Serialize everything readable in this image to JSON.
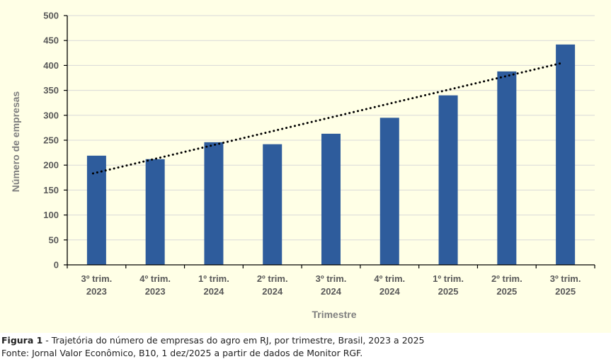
{
  "chart_data": {
    "type": "bar",
    "categories": [
      [
        "3º trim.",
        "2023"
      ],
      [
        "4º trim.",
        "2023"
      ],
      [
        "1º trim.",
        "2024"
      ],
      [
        "2º trim.",
        "2024"
      ],
      [
        "3º trim.",
        "2024"
      ],
      [
        "4º trim.",
        "2024"
      ],
      [
        "1º trim.",
        "2025"
      ],
      [
        "2º trim.",
        "2025"
      ],
      [
        "3º trim.",
        "2025"
      ]
    ],
    "values": [
      219,
      212,
      246,
      242,
      263,
      295,
      340,
      388,
      442
    ],
    "xlabel": "Trimestre",
    "ylabel": "Número de empresas",
    "ylim": [
      0,
      500
    ],
    "yticks": [
      "0",
      "50",
      "100",
      "150",
      "200",
      "250",
      "300",
      "350",
      "400",
      "450",
      "500"
    ],
    "trendline": {
      "type": "linear",
      "style": "dotted",
      "color": "#000000"
    },
    "bar_color": "#2e5c9c",
    "grid": true,
    "background": "#ffffe6"
  },
  "caption": {
    "figure_label": "Figura 1",
    "figure_text": " - Trajetória do número de empresas do agro em RJ, por trimestre, Brasil, 2023 a 2025",
    "source": "Fonte: Jornal Valor Econômico, B10, 1 dez/2025 a partir de dados de Monitor RGF."
  }
}
